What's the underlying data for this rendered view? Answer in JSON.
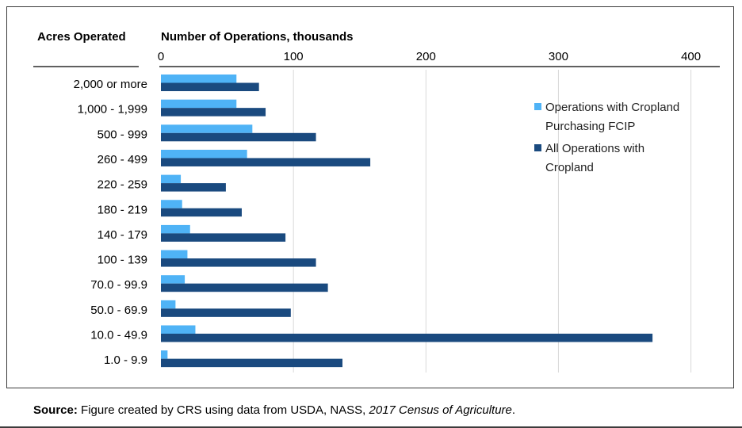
{
  "chart_data": {
    "type": "bar",
    "orientation": "horizontal",
    "title": "",
    "ylabel": "Acres Operated",
    "xlabel": "Number of Operations, thousands",
    "xlim": [
      0,
      420
    ],
    "xticks": [
      0,
      100,
      200,
      300,
      400
    ],
    "grid": true,
    "legend_position": "right",
    "categories": [
      "2,000 or more",
      "1,000 - 1,999",
      "500 - 999",
      "260 - 499",
      "220 - 259",
      "180 - 219",
      "140 - 179",
      "100 - 139",
      "70.0 - 99.9",
      "50.0 - 69.9",
      "10.0 - 49.9",
      "1.0 - 9.9"
    ],
    "series": [
      {
        "name": "Operations with Cropland Purchasing FCIP",
        "legend_lines": [
          "Operations with Cropland",
          "Purchasing FCIP"
        ],
        "color": "#4fb3f6",
        "values": [
          57,
          57,
          69,
          65,
          15,
          16,
          22,
          20,
          18,
          11,
          26,
          5
        ]
      },
      {
        "name": "All Operations with Cropland",
        "legend_lines": [
          "All Operations with",
          "Cropland"
        ],
        "color": "#1a4a7f",
        "values": [
          74,
          79,
          117,
          158,
          49,
          61,
          94,
          117,
          126,
          98,
          371,
          137
        ]
      }
    ]
  },
  "source": {
    "label": "Source:",
    "text": " Figure created by CRS using data from USDA, NASS, ",
    "italic": "2017 Census of Agriculture",
    "end": "."
  }
}
